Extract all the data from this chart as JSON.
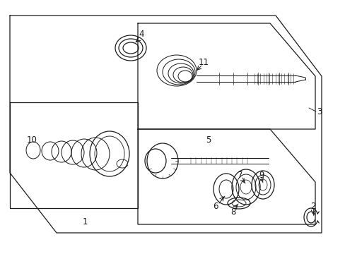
{
  "bg_color": "#ffffff",
  "line_color": "#1a1a1a",
  "lw": 0.9,
  "fig_w": 4.89,
  "fig_h": 3.6,
  "dpi": 100
}
